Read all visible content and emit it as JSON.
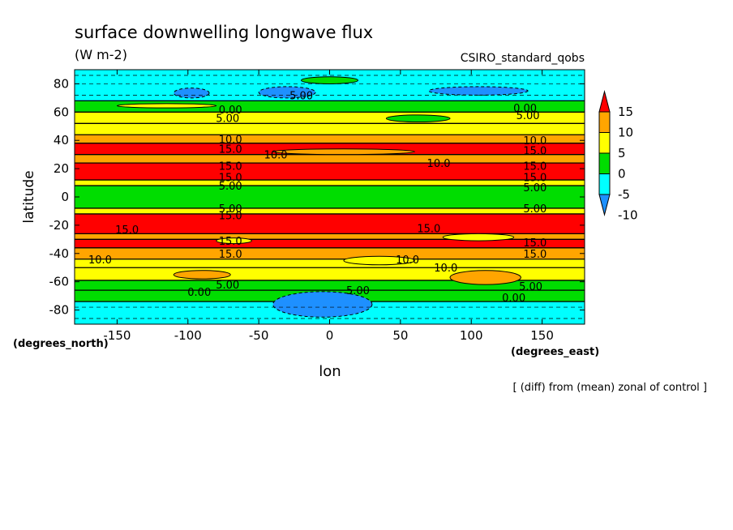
{
  "chart_data": {
    "type": "heatmap",
    "title": "surface downwelling longwave flux",
    "units": "(W m-2)",
    "dataset": "CSIRO_standard_qobs",
    "xlabel": "lon",
    "ylabel": "latitude",
    "x_units": "(degrees_east)",
    "y_units": "(degrees_north)",
    "footnote": "[ (diff) from (mean) zonal of control ]",
    "xlim": [
      -180,
      180
    ],
    "ylim": [
      -90,
      90
    ],
    "x_ticks": [
      -150,
      -100,
      -50,
      0,
      50,
      100,
      150
    ],
    "x_tick_labels": [
      "-150",
      "-100",
      "-50",
      "0",
      "50",
      "100",
      "150"
    ],
    "y_ticks": [
      -80,
      -60,
      -40,
      -20,
      0,
      20,
      40,
      60,
      80
    ],
    "y_tick_labels": [
      "-80",
      "-60",
      "-40",
      "-20",
      "0",
      "20",
      "40",
      "60",
      "80"
    ],
    "colorbar": {
      "levels": [
        -10,
        -5,
        0,
        5,
        10,
        15
      ],
      "labels": [
        "-10",
        "-5",
        "0",
        "5",
        "10",
        "15"
      ],
      "colors": [
        "#1e90ff",
        "#00ffff",
        "#00dd00",
        "#ffff00",
        "#ffa500",
        "#ff0000"
      ]
    },
    "zonal_bands": [
      {
        "lat": [
          -90,
          -74
        ],
        "value": -2
      },
      {
        "lat": [
          -74,
          -66
        ],
        "value": 1
      },
      {
        "lat": [
          -66,
          -59
        ],
        "value": 3
      },
      {
        "lat": [
          -59,
          -50
        ],
        "value": 7
      },
      {
        "lat": [
          -50,
          -44
        ],
        "value": 9
      },
      {
        "lat": [
          -44,
          -36
        ],
        "value": 13
      },
      {
        "lat": [
          -36,
          -30
        ],
        "value": 17
      },
      {
        "lat": [
          -30,
          -26
        ],
        "value": 12
      },
      {
        "lat": [
          -26,
          -12
        ],
        "value": 17
      },
      {
        "lat": [
          -12,
          -8
        ],
        "value": 8
      },
      {
        "lat": [
          -8,
          8
        ],
        "value": 2
      },
      {
        "lat": [
          8,
          12
        ],
        "value": 8
      },
      {
        "lat": [
          12,
          24
        ],
        "value": 17
      },
      {
        "lat": [
          24,
          30
        ],
        "value": 12
      },
      {
        "lat": [
          30,
          38
        ],
        "value": 17
      },
      {
        "lat": [
          38,
          44
        ],
        "value": 12
      },
      {
        "lat": [
          44,
          52
        ],
        "value": 7
      },
      {
        "lat": [
          52,
          60
        ],
        "value": 8
      },
      {
        "lat": [
          60,
          68
        ],
        "value": 3
      },
      {
        "lat": [
          68,
          90
        ],
        "value": -2
      }
    ],
    "anomalies": [
      {
        "lon": [
          -40,
          30
        ],
        "lat": [
          -85,
          -67
        ],
        "value": -7
      },
      {
        "lon": [
          -110,
          -85
        ],
        "lat": [
          70,
          77
        ],
        "value": -7
      },
      {
        "lon": [
          -50,
          -10
        ],
        "lat": [
          70,
          78
        ],
        "value": -7
      },
      {
        "lon": [
          70,
          140
        ],
        "lat": [
          72,
          78
        ],
        "value": -7
      },
      {
        "lon": [
          -20,
          20
        ],
        "lat": [
          80,
          85
        ],
        "value": 3
      },
      {
        "lon": [
          40,
          85
        ],
        "lat": [
          53,
          58
        ],
        "value": 3
      },
      {
        "lon": [
          85,
          135
        ],
        "lat": [
          -62,
          -52
        ],
        "value": 12
      },
      {
        "lon": [
          -110,
          -70
        ],
        "lat": [
          -58,
          -52
        ],
        "value": 12
      },
      {
        "lon": [
          10,
          60
        ],
        "lat": [
          -48,
          -42
        ],
        "value": 9
      },
      {
        "lon": [
          80,
          130
        ],
        "lat": [
          -31,
          -26
        ],
        "value": 7
      },
      {
        "lon": [
          -80,
          -55
        ],
        "lat": [
          -33,
          -29
        ],
        "value": 7
      },
      {
        "lon": [
          -40,
          60
        ],
        "lat": [
          30,
          34
        ],
        "value": 12
      },
      {
        "lon": [
          -150,
          -80
        ],
        "lat": [
          63,
          66
        ],
        "value": 5
      }
    ],
    "contour_labels": [
      {
        "lon": -70,
        "lat": 62,
        "text": "0.00"
      },
      {
        "lon": -72,
        "lat": 56,
        "text": "5.00"
      },
      {
        "lon": -70,
        "lat": 41,
        "text": "10.0"
      },
      {
        "lon": -70,
        "lat": 34,
        "text": "15.0"
      },
      {
        "lon": -38,
        "lat": 30,
        "text": "10.0"
      },
      {
        "lon": -70,
        "lat": 22,
        "text": "15.0"
      },
      {
        "lon": -70,
        "lat": 14,
        "text": "15.0"
      },
      {
        "lon": -70,
        "lat": 8,
        "text": "5.00"
      },
      {
        "lon": -70,
        "lat": -8,
        "text": "5.00"
      },
      {
        "lon": -70,
        "lat": -13,
        "text": "15.0"
      },
      {
        "lon": -143,
        "lat": -23,
        "text": "15.0"
      },
      {
        "lon": -70,
        "lat": -31,
        "text": "15.0"
      },
      {
        "lon": -70,
        "lat": -40,
        "text": "15.0"
      },
      {
        "lon": -162,
        "lat": -44,
        "text": "10.0"
      },
      {
        "lon": -72,
        "lat": -62,
        "text": "5.00"
      },
      {
        "lon": -92,
        "lat": -67,
        "text": "0.00"
      },
      {
        "lon": -20,
        "lat": 72,
        "text": "5.00"
      },
      {
        "lon": 20,
        "lat": -66,
        "text": "5.00"
      },
      {
        "lon": 138,
        "lat": 63,
        "text": "0.00"
      },
      {
        "lon": 140,
        "lat": 58,
        "text": "5.00"
      },
      {
        "lon": 145,
        "lat": 40,
        "text": "10.0"
      },
      {
        "lon": 145,
        "lat": 33,
        "text": "15.0"
      },
      {
        "lon": 77,
        "lat": 24,
        "text": "10.0"
      },
      {
        "lon": 145,
        "lat": 22,
        "text": "15.0"
      },
      {
        "lon": 145,
        "lat": 14,
        "text": "15.0"
      },
      {
        "lon": 145,
        "lat": 7,
        "text": "5.00"
      },
      {
        "lon": 145,
        "lat": -8,
        "text": "5.00"
      },
      {
        "lon": 70,
        "lat": -22,
        "text": "15.0"
      },
      {
        "lon": 145,
        "lat": -32,
        "text": "15.0"
      },
      {
        "lon": 145,
        "lat": -40,
        "text": "15.0"
      },
      {
        "lon": 55,
        "lat": -44,
        "text": "10.0"
      },
      {
        "lon": 82,
        "lat": -50,
        "text": "10.0"
      },
      {
        "lon": 142,
        "lat": -63,
        "text": "5.00"
      },
      {
        "lon": 130,
        "lat": -71,
        "text": "0.00"
      }
    ]
  }
}
